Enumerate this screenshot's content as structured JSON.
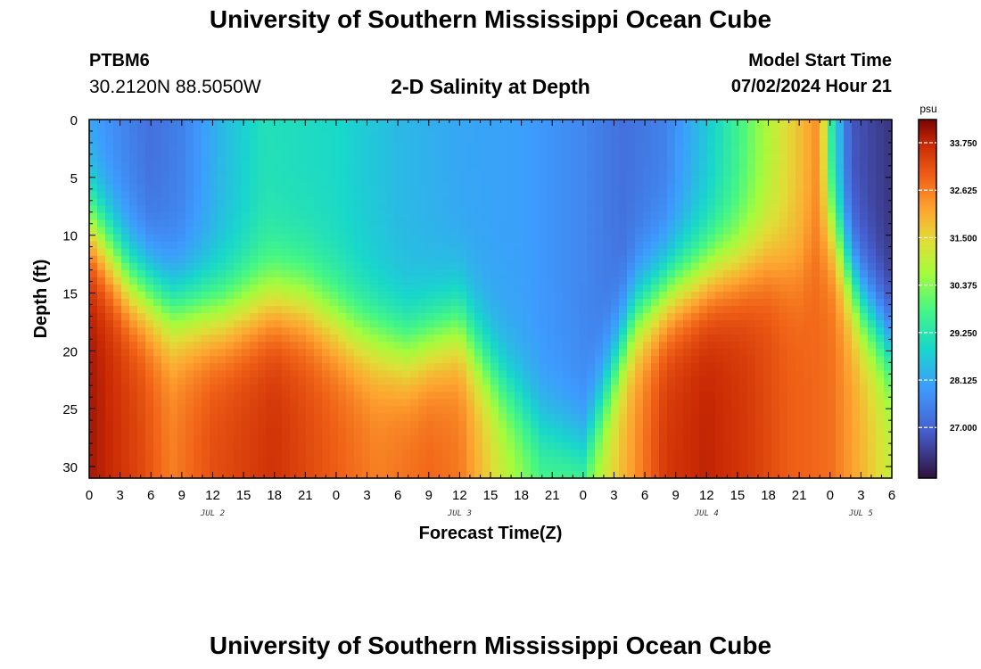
{
  "header": {
    "title": "University of Southern Mississippi Ocean Cube",
    "station": "PTBM6",
    "coords": "30.2120N  88.5050W",
    "subtitle": "2-D Salinity at Depth",
    "model_start_label": "Model Start Time",
    "model_start_value": "07/02/2024 Hour 21"
  },
  "footer": {
    "title": "University of Southern Mississippi Ocean Cube"
  },
  "chart_data": {
    "type": "heatmap",
    "title": "2-D Salinity at Depth",
    "xlabel": "Forecast Time(Z)",
    "ylabel": "Depth (ft)",
    "x_range_hours": [
      0,
      78
    ],
    "y_range": [
      0,
      31
    ],
    "x_tick_labels": [
      "0",
      "3",
      "6",
      "9",
      "12",
      "15",
      "18",
      "21",
      "0",
      "3",
      "6",
      "9",
      "12",
      "15",
      "18",
      "21",
      "0",
      "3",
      "6",
      "9",
      "12",
      "15",
      "18",
      "21",
      "0",
      "3",
      "6"
    ],
    "y_ticks": [
      0,
      5,
      10,
      15,
      20,
      25,
      30
    ],
    "date_labels": [
      {
        "label": "JUL 2",
        "hour": 12
      },
      {
        "label": "JUL 3",
        "hour": 36
      },
      {
        "label": "JUL 4",
        "hour": 60
      },
      {
        "label": "JUL 5",
        "hour": 75
      }
    ],
    "colorbar": {
      "unit": "psu",
      "min": 25.8,
      "max": 34.3,
      "tick_labels": [
        "33.750",
        "32.625",
        "31.500",
        "30.375",
        "29.250",
        "28.125",
        "27.000"
      ],
      "tick_values": [
        33.75,
        32.625,
        31.5,
        30.375,
        29.25,
        28.125,
        27.0
      ]
    },
    "surface_salinity": [
      [
        0,
        28.0
      ],
      [
        6,
        27.2
      ],
      [
        9,
        27.5
      ],
      [
        13,
        28.4
      ],
      [
        17,
        29.1
      ],
      [
        24,
        28.9
      ],
      [
        30,
        28.4
      ],
      [
        36,
        28.1
      ],
      [
        42,
        28.0
      ],
      [
        48,
        27.6
      ],
      [
        52,
        27.2
      ],
      [
        56,
        27.5
      ],
      [
        60,
        28.6
      ],
      [
        63,
        29.6
      ],
      [
        66,
        30.8
      ],
      [
        69,
        31.8
      ],
      [
        71,
        32.5
      ],
      [
        72,
        29.5
      ],
      [
        74,
        26.8
      ],
      [
        78,
        26.3
      ]
    ],
    "halocline_depth_ft": [
      [
        0,
        9
      ],
      [
        4,
        14
      ],
      [
        8,
        16.5
      ],
      [
        13,
        16.8
      ],
      [
        18,
        15.5
      ],
      [
        21,
        15.8
      ],
      [
        26,
        18.5
      ],
      [
        31,
        20
      ],
      [
        36,
        18
      ],
      [
        40,
        23
      ],
      [
        44,
        27
      ],
      [
        48,
        29
      ],
      [
        50,
        24
      ],
      [
        53,
        17
      ],
      [
        57,
        14.5
      ],
      [
        61,
        13
      ],
      [
        66,
        12
      ],
      [
        69,
        13
      ],
      [
        72,
        9
      ],
      [
        75,
        16
      ],
      [
        78,
        20
      ]
    ],
    "bottom_salinity": [
      [
        0,
        34.0
      ],
      [
        5,
        33.3
      ],
      [
        8,
        32.6
      ],
      [
        12,
        33.2
      ],
      [
        18,
        33.6
      ],
      [
        23,
        33.1
      ],
      [
        28,
        32.6
      ],
      [
        33,
        32.9
      ],
      [
        36,
        32.7
      ],
      [
        40,
        31.2
      ],
      [
        44,
        30.0
      ],
      [
        48,
        30.4
      ],
      [
        52,
        32.0
      ],
      [
        56,
        33.5
      ],
      [
        60,
        33.8
      ],
      [
        64,
        33.5
      ],
      [
        68,
        33.0
      ],
      [
        72,
        32.8
      ],
      [
        75,
        32.0
      ],
      [
        78,
        31.0
      ]
    ]
  }
}
